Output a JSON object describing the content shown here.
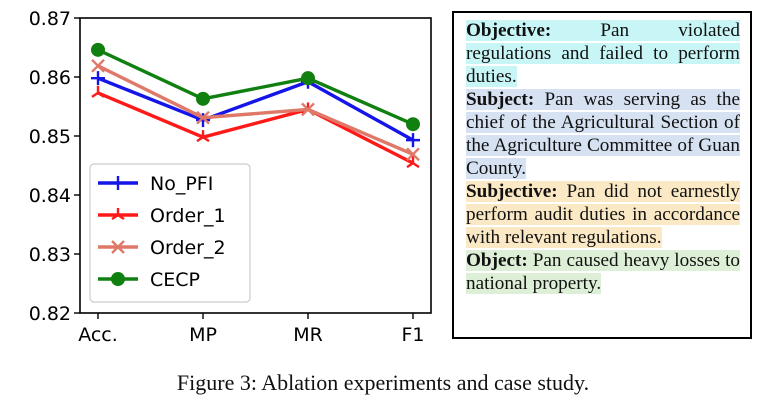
{
  "chart_data": {
    "type": "line",
    "categories": [
      "Acc.",
      "MP",
      "MR",
      "F1"
    ],
    "ylim": [
      0.82,
      0.87
    ],
    "yticks": [
      "0.82",
      "0.83",
      "0.84",
      "0.85",
      "0.86",
      "0.87"
    ],
    "legend_position": "lower-left",
    "grid": false,
    "series": [
      {
        "name": "No_PFI",
        "color": "#1515e8",
        "marker": "plus",
        "values": [
          0.8598,
          0.8527,
          0.8592,
          0.8493
        ]
      },
      {
        "name": "Order_1",
        "color": "#ff1a1a",
        "marker": "tri",
        "values": [
          0.8573,
          0.8498,
          0.8545,
          0.8454
        ]
      },
      {
        "name": "Order_2",
        "color": "#e0786a",
        "marker": "x",
        "values": [
          0.8619,
          0.8531,
          0.8545,
          0.8469
        ]
      },
      {
        "name": "CECP",
        "color": "#108010",
        "marker": "circle",
        "values": [
          0.8646,
          0.8563,
          0.8598,
          0.852
        ]
      }
    ]
  },
  "case_study": [
    {
      "label": "Objective:",
      "text": " Pan violated regulations and failed to perform duties.",
      "color": "#c8f5f5"
    },
    {
      "label": "Subject:",
      "text": " Pan was serving as the chief of the Agricultural Section of the Agriculture Committee of Guan County.",
      "color": "#d6e2f2"
    },
    {
      "label": "Subjective:",
      "text": " Pan did not earnestly perform audit duties in accordance with relevant regulations.",
      "color": "#fbe8c4"
    },
    {
      "label": "Object:",
      "text": " Pan caused heavy losses to national property.",
      "color": "#ddefd6"
    }
  ],
  "caption": "Figure 3: Ablation experiments and case study."
}
